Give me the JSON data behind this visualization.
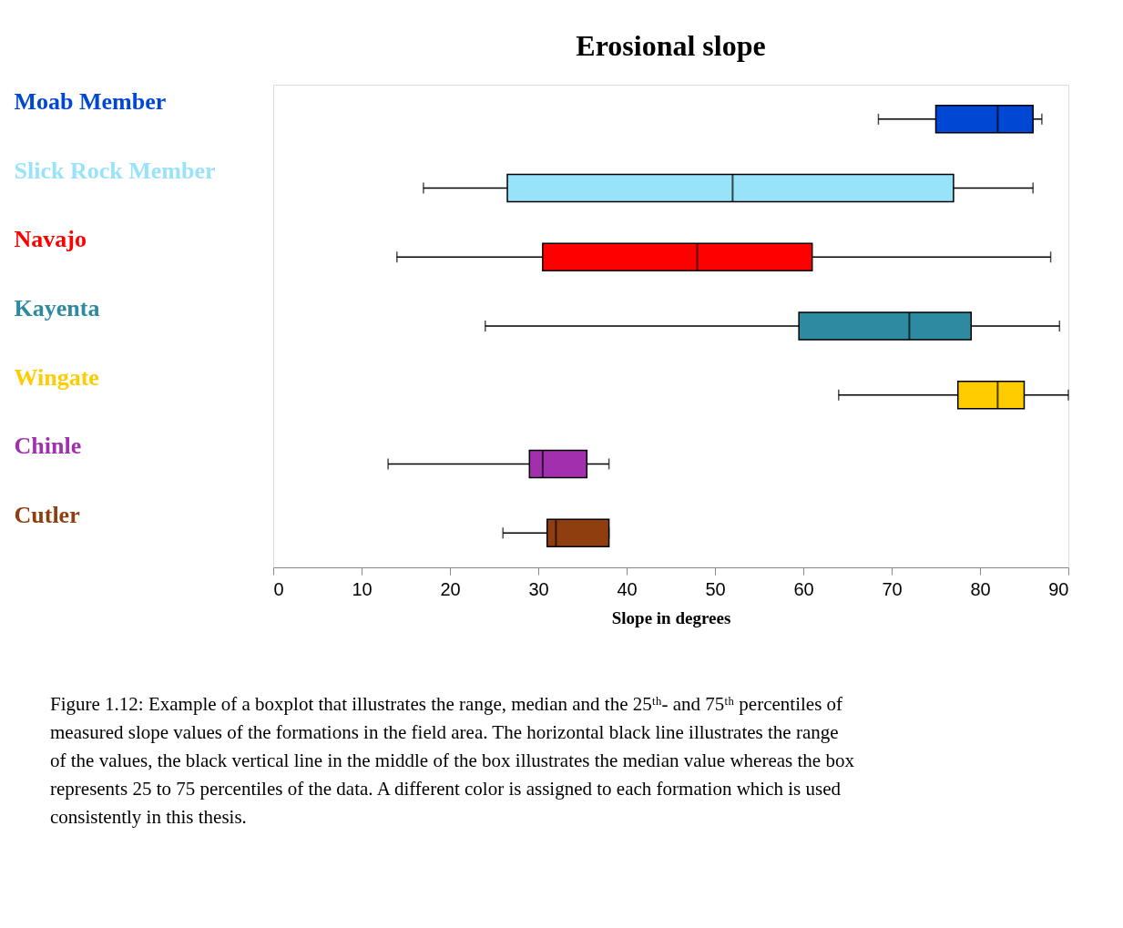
{
  "chart_data": {
    "type": "box",
    "orientation": "horizontal",
    "title": "Erosional slope",
    "xlabel": "Slope in degrees",
    "categories": [
      "Moab Member",
      "Slick Rock Member",
      "Navajo",
      "Kayenta",
      "Wingate",
      "Chinle",
      "Cutler"
    ],
    "colors": [
      "#0047d4",
      "#99e3fa",
      "#ff0000",
      "#2e8aa0",
      "#ffcc00",
      "#a12fae",
      "#8f3f0f"
    ],
    "boxes": [
      {
        "low": 68.5,
        "q1": 75,
        "median": 82,
        "q3": 86,
        "high": 87
      },
      {
        "low": 17,
        "q1": 26.5,
        "median": 52,
        "q3": 77,
        "high": 86
      },
      {
        "low": 14,
        "q1": 30.5,
        "median": 48,
        "q3": 61,
        "high": 88
      },
      {
        "low": 24,
        "q1": 59.5,
        "median": 72,
        "q3": 79,
        "high": 89
      },
      {
        "low": 64,
        "q1": 77.5,
        "median": 82,
        "q3": 85,
        "high": 90
      },
      {
        "low": 13,
        "q1": 29,
        "median": 30.5,
        "q3": 35.5,
        "high": 38
      },
      {
        "low": 26,
        "q1": 31,
        "median": 32,
        "q3": 38,
        "high": 38
      }
    ],
    "xlim": [
      0,
      90
    ],
    "xticks": [
      0,
      10,
      20,
      30,
      40,
      50,
      60,
      70,
      80,
      90
    ],
    "grid": false,
    "legend": false,
    "annotations": [
      "Figure 1.12: Example of a boxplot that illustrates the range, median and the 25ᵗʰ- and 75ᵗʰ percentiles of measured slope values of the formations in the field area. The horizontal black line illustrates the range of the values, the black vertical line in the middle of the box illustrates the median value whereas the box represents 25 to 75 percentiles of the data. A different color is assigned to each formation which is used consistently in this thesis."
    ]
  }
}
